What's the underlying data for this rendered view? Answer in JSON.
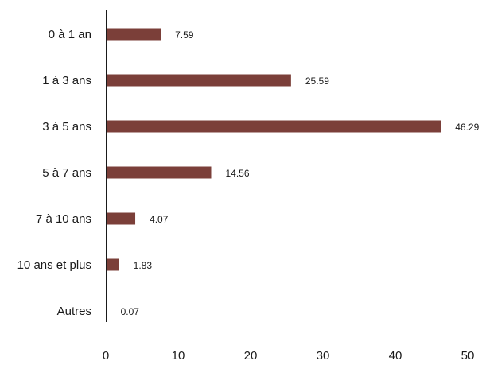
{
  "chart_data": {
    "type": "bar",
    "orientation": "horizontal",
    "title": "",
    "xlabel": "",
    "ylabel": "",
    "categories": [
      "0 à 1 an",
      "1 à 3 ans",
      "3 à 5 ans",
      "5 à 7 ans",
      "7 à 10 ans",
      "10 ans et plus",
      "Autres"
    ],
    "values": [
      7.59,
      25.59,
      46.29,
      14.56,
      4.07,
      1.83,
      0.07
    ],
    "value_labels": [
      "7.59",
      "25.59",
      "46.29",
      "14.56",
      "4.07",
      "1.83",
      "0.07"
    ],
    "xlim": [
      0,
      50
    ],
    "xticks": [
      0,
      10,
      20,
      30,
      40,
      50
    ],
    "xtick_labels": [
      "0",
      "10",
      "20",
      "30",
      "40",
      "50"
    ],
    "grid": false,
    "legend": "none",
    "bar_color": "#7b3f39"
  }
}
